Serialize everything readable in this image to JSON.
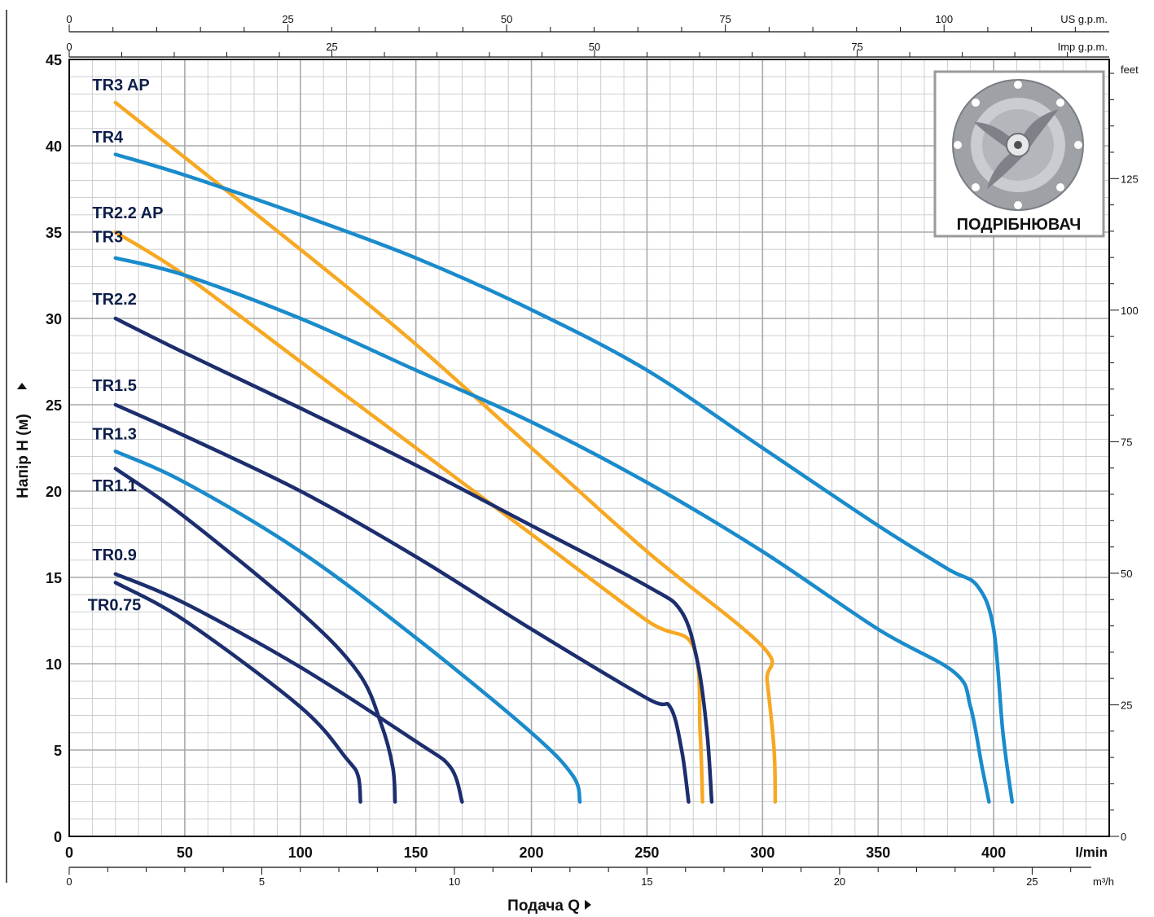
{
  "chart_data": {
    "type": "line",
    "xlabel": "Подача Q",
    "ylabel": "Напір H  (м)",
    "x_unit": "l/min",
    "y_unit": "",
    "xlim": [
      0,
      450
    ],
    "ylim": [
      0,
      45
    ],
    "x_ticks": [
      0,
      50,
      100,
      150,
      200,
      250,
      300,
      350,
      400
    ],
    "y_ticks": [
      0,
      5,
      10,
      15,
      20,
      25,
      30,
      35,
      40,
      45
    ],
    "grid": true,
    "secondary_axes": {
      "bottom_m3h": {
        "unit": "m³/h",
        "ticks": [
          0,
          5,
          10,
          15,
          20,
          25
        ]
      },
      "top_us_gpm": {
        "unit": "US g.p.m.",
        "ticks": [
          0,
          25,
          50,
          75,
          100
        ]
      },
      "top_imp_gpm": {
        "unit": "Imp g.p.m.",
        "ticks": [
          0,
          25,
          50,
          75
        ]
      },
      "right_feet": {
        "unit": "feet",
        "ticks": [
          0,
          25,
          50,
          75,
          100,
          125
        ]
      }
    },
    "inset": {
      "label": "ПОДРІБНЮВАЧ",
      "icon": "grinder-impeller-icon"
    },
    "series": [
      {
        "name": "TR3 AP",
        "color": "#f7a823",
        "label_pos": [
          10,
          43.2
        ],
        "x": [
          20,
          100,
          150,
          200,
          250,
          300,
          302,
          305,
          305.5
        ],
        "y": [
          42.5,
          34.0,
          28.5,
          22.5,
          16.5,
          11.0,
          9.0,
          5.0,
          2.0
        ]
      },
      {
        "name": "TR4",
        "color": "#1a8bcb",
        "label_pos": [
          10,
          40.2
        ],
        "x": [
          20,
          50,
          100,
          150,
          200,
          250,
          300,
          350,
          380,
          393,
          400,
          404,
          408
        ],
        "y": [
          39.5,
          38.3,
          36.0,
          33.5,
          30.5,
          27.0,
          22.5,
          18.0,
          15.5,
          14.5,
          12.0,
          6.0,
          2.0
        ]
      },
      {
        "name": "TR2.2 AP",
        "color": "#f7a823",
        "label_pos": [
          10,
          35.8
        ],
        "x": [
          20,
          50,
          100,
          150,
          200,
          250,
          270,
          273,
          274
        ],
        "y": [
          35.0,
          32.5,
          27.5,
          22.5,
          17.5,
          12.5,
          11.0,
          6.0,
          2.0
        ]
      },
      {
        "name": "TR3",
        "color": "#1a8bcb",
        "label_pos": [
          10,
          34.4
        ],
        "x": [
          20,
          50,
          100,
          150,
          200,
          250,
          300,
          350,
          383,
          390,
          395,
          398
        ],
        "y": [
          33.5,
          32.5,
          30.0,
          27.0,
          24.0,
          20.5,
          16.5,
          12.0,
          9.5,
          7.5,
          4.0,
          2.0
        ]
      },
      {
        "name": "TR2.2",
        "color": "#1c2e6e",
        "label_pos": [
          10,
          30.8
        ],
        "x": [
          20,
          50,
          100,
          150,
          200,
          250,
          265,
          272,
          276,
          278
        ],
        "y": [
          30.0,
          28.0,
          24.8,
          21.5,
          18.0,
          14.5,
          13.0,
          10.0,
          6.0,
          2.0
        ]
      },
      {
        "name": "TR1.5",
        "color": "#1c2e6e",
        "label_pos": [
          10,
          25.8
        ],
        "x": [
          20,
          50,
          100,
          150,
          200,
          250,
          260,
          265,
          268
        ],
        "y": [
          25.0,
          23.2,
          20.0,
          16.2,
          12.0,
          8.0,
          7.5,
          5.0,
          2.0
        ]
      },
      {
        "name": "TR1.3",
        "color": "#1a8bcb",
        "label_pos": [
          10,
          23.0
        ],
        "x": [
          20,
          50,
          100,
          150,
          200,
          218,
          221
        ],
        "y": [
          22.3,
          20.5,
          16.5,
          11.5,
          6.0,
          3.5,
          2.0
        ]
      },
      {
        "name": "TR1.1",
        "color": "#1c2e6e",
        "label_pos": [
          10,
          20.0
        ],
        "x": [
          20,
          50,
          100,
          125,
          135,
          140,
          141
        ],
        "y": [
          21.3,
          18.5,
          13.0,
          9.5,
          6.5,
          4.0,
          2.0
        ]
      },
      {
        "name": "TR0.9",
        "color": "#1c2e6e",
        "label_pos": [
          10,
          16.0
        ],
        "x": [
          20,
          50,
          100,
          150,
          165,
          170
        ],
        "y": [
          15.2,
          13.5,
          9.8,
          5.5,
          4.0,
          2.0
        ]
      },
      {
        "name": "TR0.75",
        "color": "#1c2e6e",
        "label_pos": [
          8,
          13.1
        ],
        "x": [
          20,
          50,
          100,
          120,
          125,
          126
        ],
        "y": [
          14.7,
          12.5,
          7.5,
          4.5,
          3.5,
          2.0
        ]
      }
    ]
  }
}
